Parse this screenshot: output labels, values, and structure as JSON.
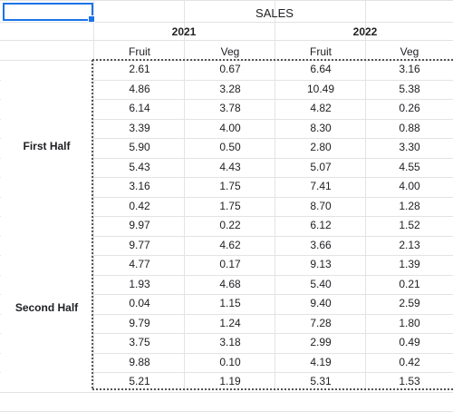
{
  "title": "SALES",
  "years": [
    "2021",
    "2022"
  ],
  "columns": [
    "Fruit",
    "Veg",
    "Fruit",
    "Veg"
  ],
  "groups": [
    "First Half",
    "Second Half"
  ],
  "rows": [
    [
      "2.61",
      "0.67",
      "6.64",
      "3.16"
    ],
    [
      "4.86",
      "3.28",
      "10.49",
      "5.38"
    ],
    [
      "6.14",
      "3.78",
      "4.82",
      "0.26"
    ],
    [
      "3.39",
      "4.00",
      "8.30",
      "0.88"
    ],
    [
      "5.90",
      "0.50",
      "2.80",
      "3.30"
    ],
    [
      "5.43",
      "4.43",
      "5.07",
      "4.55"
    ],
    [
      "3.16",
      "1.75",
      "7.41",
      "4.00"
    ],
    [
      "0.42",
      "1.75",
      "8.70",
      "1.28"
    ],
    [
      "9.97",
      "0.22",
      "6.12",
      "1.52"
    ],
    [
      "9.77",
      "4.62",
      "3.66",
      "2.13"
    ],
    [
      "4.77",
      "0.17",
      "9.13",
      "1.39"
    ],
    [
      "1.93",
      "4.68",
      "5.40",
      "0.21"
    ],
    [
      "0.04",
      "1.15",
      "9.40",
      "2.59"
    ],
    [
      "9.79",
      "1.24",
      "7.28",
      "1.80"
    ],
    [
      "3.75",
      "3.18",
      "2.99",
      "0.49"
    ],
    [
      "9.88",
      "0.10",
      "4.19",
      "0.42"
    ],
    [
      "5.21",
      "1.19",
      "5.31",
      "1.53"
    ]
  ]
}
